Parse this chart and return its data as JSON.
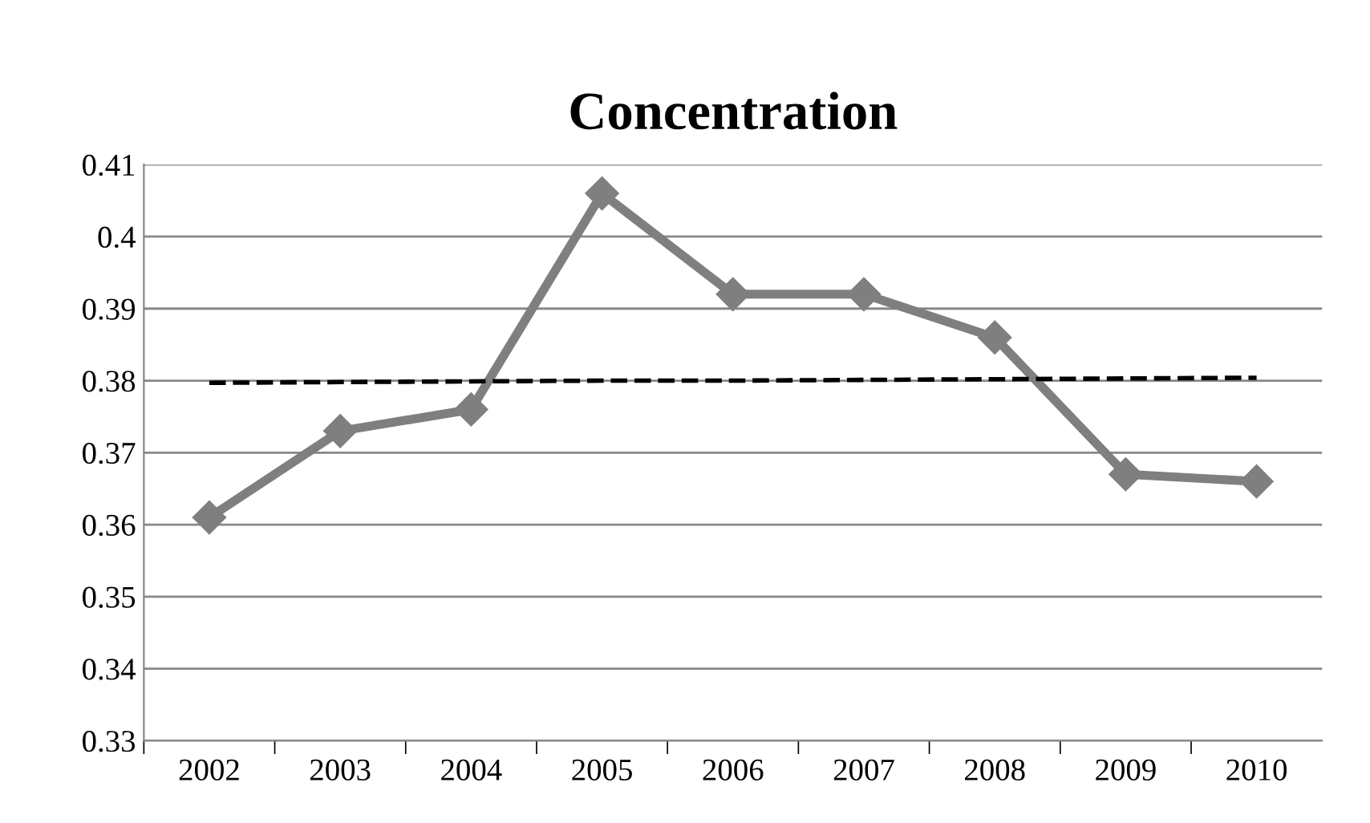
{
  "chart_data": {
    "type": "line",
    "title": "Concentration",
    "categories": [
      "2002",
      "2003",
      "2004",
      "2005",
      "2006",
      "2007",
      "2008",
      "2009",
      "2010"
    ],
    "series": [
      {
        "color": "#7f7f7f",
        "marker": "diamond",
        "line_style": "solid",
        "values": [
          0.361,
          0.373,
          0.376,
          0.406,
          0.392,
          0.392,
          0.386,
          0.367,
          0.366
        ]
      },
      {
        "color": "#000000",
        "marker": "none",
        "line_style": "dashed",
        "values": [
          0.3797,
          0.3798,
          0.3799,
          0.38,
          0.38,
          0.3801,
          0.3802,
          0.3803,
          0.3804
        ]
      }
    ],
    "ylim": [
      0.33,
      0.41
    ],
    "yticks": [
      0.33,
      0.34,
      0.35,
      0.36,
      0.37,
      0.38,
      0.39,
      0.4,
      0.41
    ],
    "grid": "y",
    "legend": false
  }
}
